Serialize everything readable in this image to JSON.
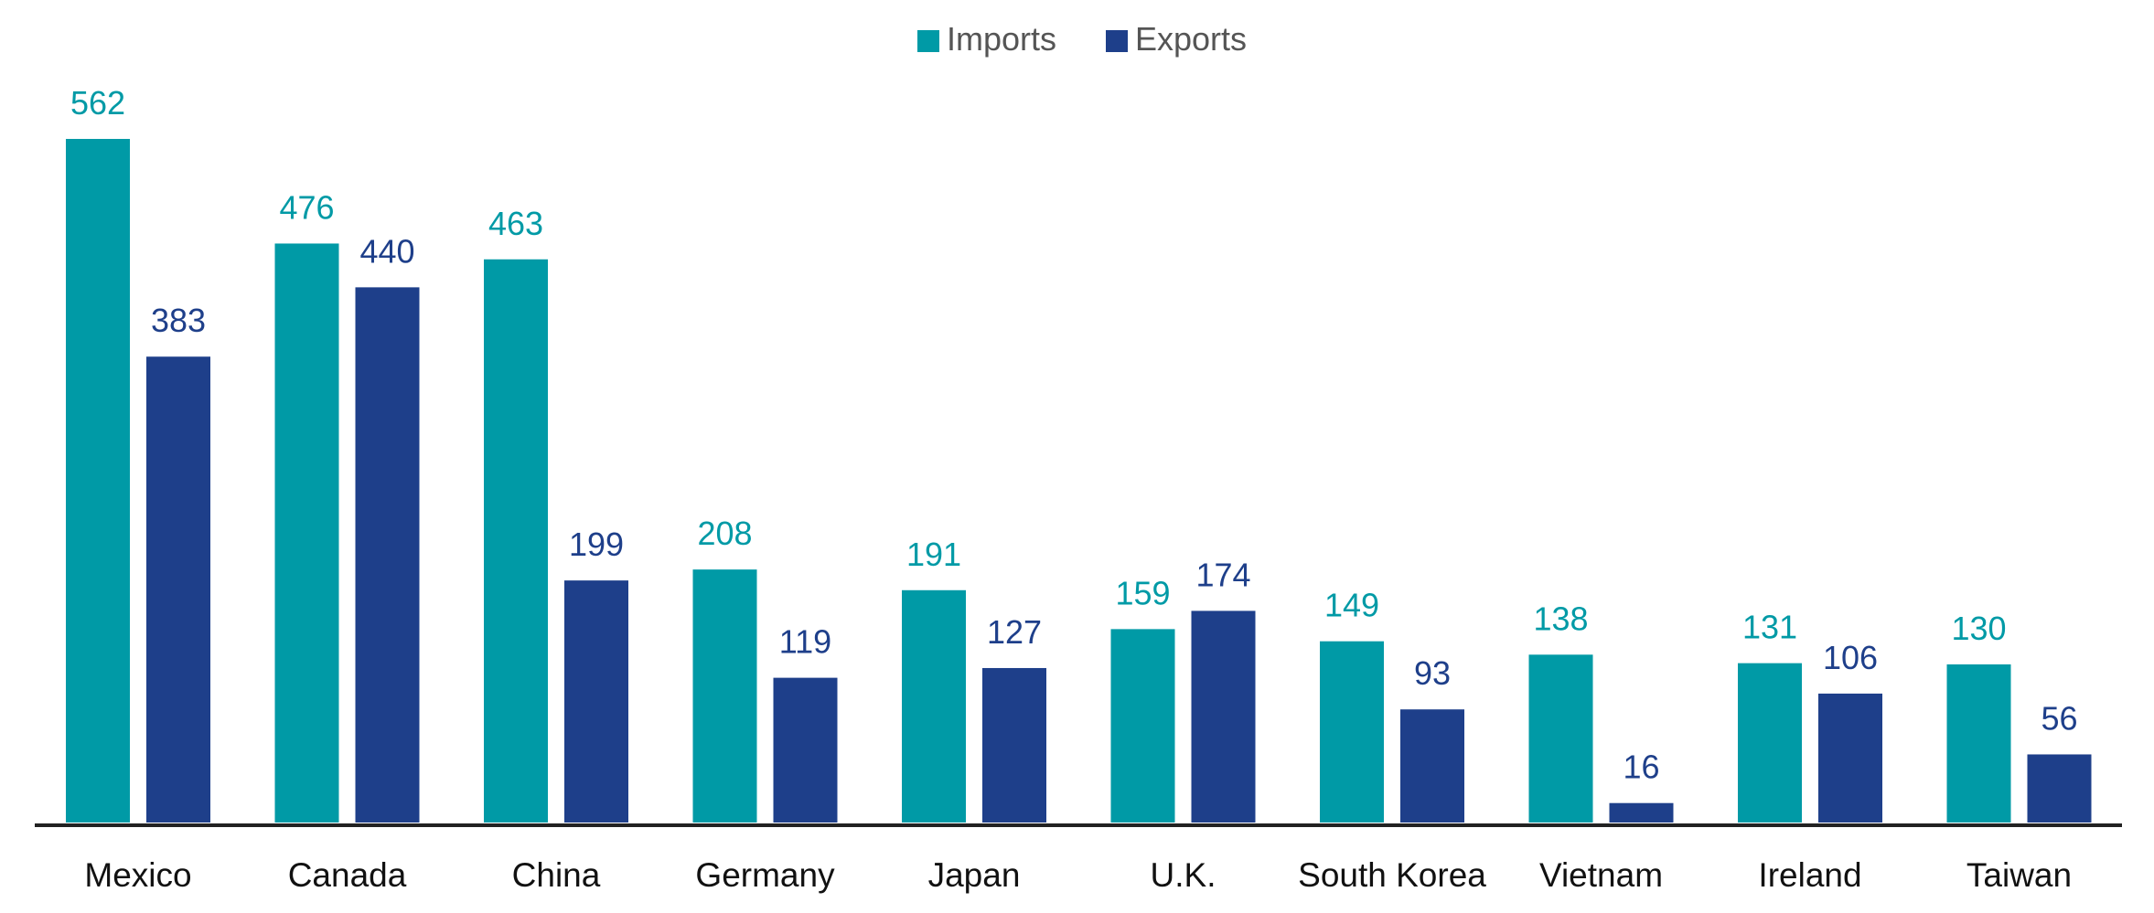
{
  "chart_data": {
    "type": "bar",
    "categories": [
      "Mexico",
      "Canada",
      "China",
      "Germany",
      "Japan",
      "U.K.",
      "South Korea",
      "Vietnam",
      "Ireland",
      "Taiwan"
    ],
    "series": [
      {
        "name": "Imports",
        "color": "#009aa6",
        "values": [
          562,
          476,
          463,
          208,
          191,
          159,
          149,
          138,
          131,
          130
        ]
      },
      {
        "name": "Exports",
        "color": "#1e3f8a",
        "values": [
          383,
          440,
          199,
          119,
          127,
          174,
          93,
          16,
          106,
          56
        ]
      }
    ],
    "ylim": [
      0,
      562
    ],
    "grid": false,
    "legend_position": "top-center",
    "axis_color": "#222222",
    "category_label_color": "#111111",
    "legend_text_color": "#555555"
  }
}
